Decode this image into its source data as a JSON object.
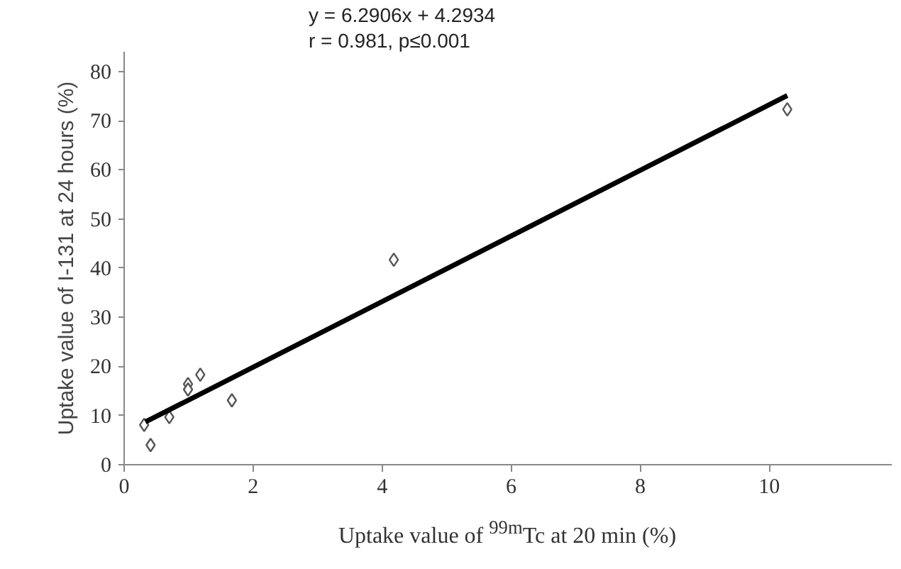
{
  "chart_data": {
    "type": "scatter",
    "xlabel": "Uptake value of $^{99m}$Tc at 20 min (%)",
    "ylabel": "Uptake value of I-131 at 24 hours (%)",
    "annotations": [
      "y = 6.2906x + 4.2934",
      "r = 0.981, p≤0.001"
    ],
    "xlim": [
      0,
      11.9
    ],
    "ylim": [
      0,
      84
    ],
    "xticks": [
      0,
      2,
      4,
      6,
      8,
      10
    ],
    "yticks": [
      0,
      10,
      20,
      30,
      40,
      50,
      60,
      70,
      80
    ],
    "grid": false,
    "series": [
      {
        "color": "#555555",
        "marker": "diamond",
        "x": [
          0.31,
          0.41,
          0.7,
          0.99,
          0.99,
          1.18,
          1.67,
          4.18,
          10.28
        ],
        "values": [
          8.1,
          4.0,
          9.7,
          16.4,
          15.3,
          18.3,
          13.1,
          41.7,
          72.3
        ]
      },
      {
        "type": "line",
        "color": "#000000",
        "x": [
          0.33,
          10.28
        ],
        "values": [
          8.7,
          75.1
        ],
        "line_style": "solid"
      }
    ]
  }
}
